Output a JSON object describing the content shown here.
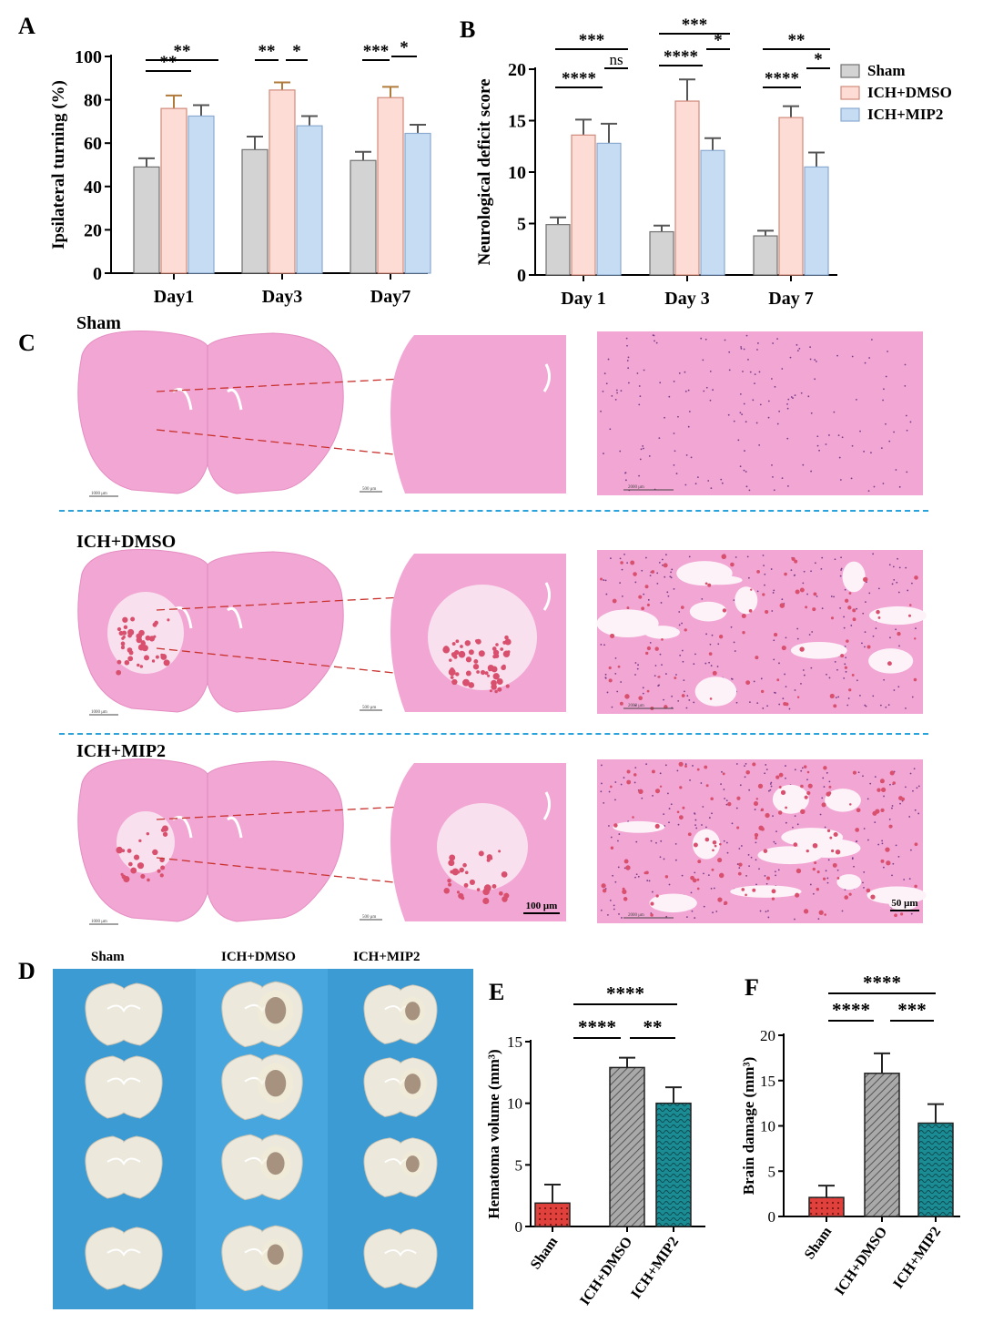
{
  "panels": {
    "a": "A",
    "b": "B",
    "c": "C",
    "d": "D",
    "e": "E",
    "f": "F"
  },
  "chart_data": [
    {
      "id": "A",
      "type": "bar",
      "ylabel": "Ipsilateral turning (%)",
      "categories": [
        "Day1",
        "Day3",
        "Day7"
      ],
      "ylim": [
        0,
        100
      ],
      "yticks": [
        0,
        20,
        40,
        60,
        80,
        100
      ],
      "series": [
        {
          "name": "Sham",
          "color": "#d3d3d3",
          "edge": "#707070",
          "err_color": "#555555",
          "values": [
            49,
            57,
            52
          ],
          "errors": [
            4,
            6,
            4
          ]
        },
        {
          "name": "ICH+DMSO",
          "color": "#fddcd6",
          "edge": "#d08a7a",
          "err_color": "#b07a3a",
          "values": [
            76,
            84.5,
            81
          ],
          "errors": [
            6,
            3.5,
            5
          ]
        },
        {
          "name": "ICH+MIP2",
          "color": "#c6dcf3",
          "edge": "#8aaad0",
          "err_color": "#555555",
          "values": [
            72.5,
            68,
            64.5
          ],
          "errors": [
            5,
            4.5,
            4
          ]
        }
      ],
      "significance": [
        {
          "cat": 0,
          "from": 0,
          "to": 1,
          "text": "**"
        },
        {
          "cat": 0,
          "from": 0,
          "to": 2,
          "text": "**"
        },
        {
          "cat": 1,
          "from": 0,
          "to": 1,
          "text": "**"
        },
        {
          "cat": 1,
          "from": 1,
          "to": 2,
          "text": "*"
        },
        {
          "cat": 2,
          "from": 0,
          "to": 1,
          "text": "***"
        },
        {
          "cat": 2,
          "from": 1,
          "to": 2,
          "text": "*"
        }
      ]
    },
    {
      "id": "B",
      "type": "bar",
      "ylabel": "Neurological deficit score",
      "categories": [
        "Day 1",
        "Day 3",
        "Day 7"
      ],
      "ylim": [
        0,
        20
      ],
      "yticks": [
        0,
        5,
        10,
        15,
        20
      ],
      "legend": [
        "Sham",
        "ICH+DMSO",
        "ICH+MIP2"
      ],
      "series": [
        {
          "name": "Sham",
          "color": "#d3d3d3",
          "edge": "#707070",
          "err_color": "#555555",
          "values": [
            4.9,
            4.2,
            3.8
          ],
          "errors": [
            0.7,
            0.6,
            0.5
          ]
        },
        {
          "name": "ICH+DMSO",
          "color": "#fddcd6",
          "edge": "#d08a7a",
          "err_color": "#555555",
          "values": [
            13.6,
            16.9,
            15.3
          ],
          "errors": [
            1.5,
            2.1,
            1.1
          ]
        },
        {
          "name": "ICH+MIP2",
          "color": "#c6dcf3",
          "edge": "#8aaad0",
          "err_color": "#555555",
          "values": [
            12.8,
            12.1,
            10.5
          ],
          "errors": [
            1.9,
            1.2,
            1.4
          ]
        }
      ],
      "significance": [
        {
          "cat": 0,
          "from": 0,
          "to": 1,
          "text": "****"
        },
        {
          "cat": 0,
          "from": 1,
          "to": 2,
          "text": "ns"
        },
        {
          "cat": 0,
          "from": 0,
          "to": 2,
          "text": "***"
        },
        {
          "cat": 1,
          "from": 0,
          "to": 1,
          "text": "****"
        },
        {
          "cat": 1,
          "from": 1,
          "to": 2,
          "text": "*"
        },
        {
          "cat": 1,
          "from": 0,
          "to": 2,
          "text": "***"
        },
        {
          "cat": 2,
          "from": 0,
          "to": 1,
          "text": "****"
        },
        {
          "cat": 2,
          "from": 1,
          "to": 2,
          "text": "*"
        },
        {
          "cat": 2,
          "from": 0,
          "to": 2,
          "text": "**"
        }
      ]
    },
    {
      "id": "E",
      "type": "bar",
      "ylabel": "Hematoma volume (mm³)",
      "categories": [
        "Sham",
        "ICH+DMSO",
        "ICH+MIP2"
      ],
      "ylim": [
        0,
        15
      ],
      "yticks": [
        0,
        5,
        10,
        15
      ],
      "values": [
        1.9,
        12.9,
        10.0
      ],
      "errors": [
        1.5,
        0.8,
        1.3
      ],
      "colors": [
        "#e0413c",
        "#a9a9a9",
        "#1b8c93"
      ],
      "patterns": [
        "dots",
        "hatch",
        "wave"
      ],
      "significance": [
        {
          "from": 0,
          "to": 1,
          "text": "****"
        },
        {
          "from": 1,
          "to": 2,
          "text": "**"
        },
        {
          "from": 0,
          "to": 2,
          "text": "****"
        }
      ]
    },
    {
      "id": "F",
      "type": "bar",
      "ylabel": "Brain damage (mm³)",
      "categories": [
        "Sham",
        "ICH+DMSO",
        "ICH+MIP2"
      ],
      "ylim": [
        0,
        20
      ],
      "yticks": [
        0,
        5,
        10,
        15,
        20
      ],
      "values": [
        2.1,
        15.8,
        10.3
      ],
      "errors": [
        1.3,
        2.2,
        2.1
      ],
      "colors": [
        "#e0413c",
        "#a9a9a9",
        "#1b8c93"
      ],
      "patterns": [
        "dots",
        "hatch",
        "wave"
      ],
      "significance": [
        {
          "from": 0,
          "to": 1,
          "text": "****"
        },
        {
          "from": 1,
          "to": 2,
          "text": "***"
        },
        {
          "from": 0,
          "to": 2,
          "text": "****"
        }
      ]
    }
  ],
  "histology": {
    "rows": [
      {
        "label": "Sham",
        "lesion": "none",
        "scale_whole": "1000 μm",
        "scale_mid": "500 μm",
        "scale_zoom": "2000 μm"
      },
      {
        "label": "ICH+DMSO",
        "lesion": "large",
        "scale_whole": "1000 μm",
        "scale_mid": "500 μm",
        "scale_zoom": "2000 μm"
      },
      {
        "label": "ICH+MIP2",
        "lesion": "medium",
        "scale_whole": "1000 μm",
        "scale_mid": "500 μm",
        "scale_zoom": "2000 μm"
      }
    ],
    "scale_bar_mid": "100 μm",
    "scale_bar_zoom": "50 μm",
    "tissue_color": "#f2a6d4",
    "blood_color": "#d8506e"
  },
  "photo_panel": {
    "columns": [
      "Sham",
      "ICH+DMSO",
      "ICH+MIP2"
    ],
    "background": "#3d9bd4",
    "hematoma": [
      [
        0,
        0,
        0,
        0
      ],
      [
        1,
        1,
        0.8,
        0.7
      ],
      [
        0.7,
        0.8,
        0.6,
        0
      ]
    ]
  }
}
